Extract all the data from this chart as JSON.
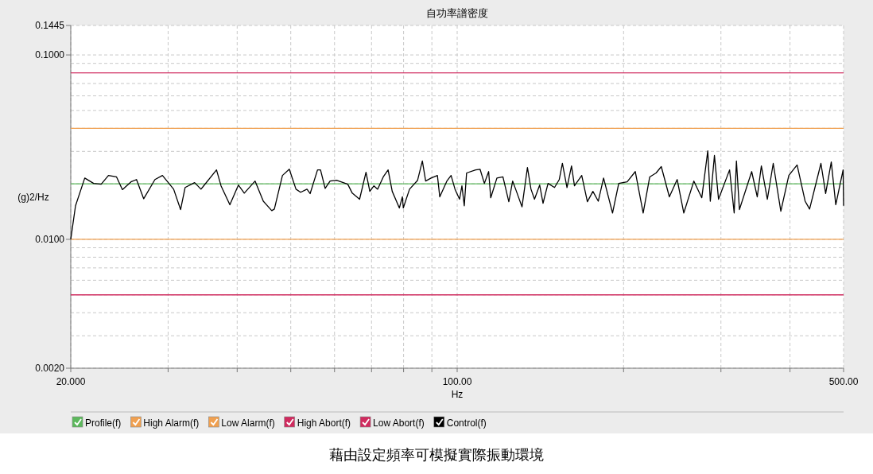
{
  "chart_data": {
    "type": "line",
    "title": "自功率譜密度",
    "xlabel": "Hz",
    "ylabel": "(g)2/Hz",
    "log": "xy",
    "grid": true,
    "legend": "bottom",
    "xlim": [
      20,
      500
    ],
    "ylim": [
      0.002,
      0.1445
    ],
    "xticks": [
      {
        "value": 20,
        "label": "20.000"
      },
      {
        "value": 30,
        "label": null
      },
      {
        "value": 40,
        "label": null
      },
      {
        "value": 50,
        "label": null
      },
      {
        "value": 60,
        "label": null
      },
      {
        "value": 70,
        "label": null
      },
      {
        "value": 80,
        "label": null
      },
      {
        "value": 90,
        "label": null
      },
      {
        "value": 100,
        "label": "100.00"
      },
      {
        "value": 200,
        "label": null
      },
      {
        "value": 300,
        "label": null
      },
      {
        "value": 400,
        "label": null
      },
      {
        "value": 500,
        "label": "500.00"
      }
    ],
    "yticks": [
      {
        "value": 0.002,
        "label": "0.0020"
      },
      {
        "value": 0.003,
        "label": null
      },
      {
        "value": 0.004,
        "label": null
      },
      {
        "value": 0.005,
        "label": null
      },
      {
        "value": 0.006,
        "label": null
      },
      {
        "value": 0.007,
        "label": null
      },
      {
        "value": 0.008,
        "label": null
      },
      {
        "value": 0.009,
        "label": null
      },
      {
        "value": 0.01,
        "label": "0.0100"
      },
      {
        "value": 0.02,
        "label": null
      },
      {
        "value": 0.03,
        "label": null
      },
      {
        "value": 0.04,
        "label": null
      },
      {
        "value": 0.05,
        "label": null
      },
      {
        "value": 0.06,
        "label": null
      },
      {
        "value": 0.07,
        "label": null
      },
      {
        "value": 0.08,
        "label": null
      },
      {
        "value": 0.09,
        "label": null
      },
      {
        "value": 0.1,
        "label": "0.1000"
      },
      {
        "value": 0.1445,
        "label": "0.1445"
      }
    ],
    "series": [
      {
        "name": "Profile(f)",
        "color": "#5cb85c",
        "x": [
          20,
          500
        ],
        "values": [
          0.02,
          0.02
        ]
      },
      {
        "name": "High Alarm(f)",
        "color": "#f0a050",
        "x": [
          20,
          500
        ],
        "values": [
          0.04,
          0.04
        ]
      },
      {
        "name": "Low Alarm(f)",
        "color": "#f0a050",
        "x": [
          20,
          500
        ],
        "values": [
          0.01,
          0.01
        ]
      },
      {
        "name": "High Abort(f)",
        "color": "#d02a5e",
        "x": [
          20,
          500
        ],
        "values": [
          0.08,
          0.08
        ]
      },
      {
        "name": "Low Abort(f)",
        "color": "#d02a5e",
        "x": [
          20,
          500
        ],
        "values": [
          0.005,
          0.005
        ]
      },
      {
        "name": "Control(f)",
        "color": "#000000",
        "x": [
          20,
          20.4,
          21.2,
          22,
          22.7,
          23.4,
          24.2,
          24.8,
          25.7,
          26.3,
          27.1,
          28.4,
          29.3,
          30.7,
          31.6,
          32.2,
          33.5,
          34.4,
          36.7,
          37.4,
          38.8,
          40.2,
          41.2,
          43.1,
          44.6,
          46.2,
          46.7,
          48.3,
          49.7,
          51.1,
          52.1,
          53.5,
          54.2,
          55.9,
          56.6,
          57.7,
          58.9,
          60.5,
          63.4,
          64.6,
          66.6,
          68.4,
          69.5,
          70.7,
          71.8,
          73.5,
          75,
          76.3,
          78.6,
          79.6,
          79.9,
          82,
          84.8,
          86.5,
          87.7,
          89.7,
          92.1,
          93,
          95.8,
          97.5,
          99.1,
          101,
          102,
          103,
          104,
          108,
          110,
          112,
          114,
          115,
          118,
          121,
          124,
          126,
          128,
          131,
          134,
          136,
          138,
          141,
          143,
          146,
          150,
          153,
          155,
          158,
          161,
          163,
          168,
          172,
          176,
          180,
          184,
          191,
          196,
          203,
          210,
          217,
          223,
          229,
          234,
          242,
          250,
          257,
          268,
          277,
          284,
          287,
          292,
          297,
          311,
          317,
          320,
          324,
          341,
          349,
          355,
          364,
          373,
          385,
          398,
          412,
          426,
          434,
          455,
          464,
          475,
          484,
          499,
          500
        ],
        "values": [
          0.01,
          0.0152,
          0.0215,
          0.0201,
          0.0199,
          0.0222,
          0.0218,
          0.0186,
          0.0205,
          0.0211,
          0.0166,
          0.0211,
          0.0222,
          0.0187,
          0.0145,
          0.0191,
          0.0203,
          0.0187,
          0.0238,
          0.0195,
          0.0154,
          0.0197,
          0.0178,
          0.0207,
          0.0161,
          0.0143,
          0.0146,
          0.0222,
          0.024,
          0.0187,
          0.018,
          0.0187,
          0.0177,
          0.0238,
          0.0238,
          0.0189,
          0.0207,
          0.0209,
          0.0199,
          0.0178,
          0.0165,
          0.0231,
          0.0182,
          0.0195,
          0.0187,
          0.0218,
          0.0238,
          0.0182,
          0.0148,
          0.017,
          0.0148,
          0.0187,
          0.0209,
          0.0266,
          0.0207,
          0.0215,
          0.0222,
          0.017,
          0.0207,
          0.0222,
          0.0187,
          0.0165,
          0.0195,
          0.0152,
          0.0229,
          0.0238,
          0.024,
          0.0201,
          0.0233,
          0.0168,
          0.0215,
          0.0218,
          0.016,
          0.0207,
          0.0182,
          0.015,
          0.0245,
          0.0187,
          0.0165,
          0.0197,
          0.0157,
          0.0201,
          0.0191,
          0.0211,
          0.0258,
          0.0191,
          0.025,
          0.0195,
          0.0222,
          0.016,
          0.0182,
          0.0161,
          0.0215,
          0.0139,
          0.0201,
          0.0205,
          0.0233,
          0.0139,
          0.0218,
          0.0229,
          0.0248,
          0.017,
          0.0211,
          0.0139,
          0.0207,
          0.0168,
          0.0302,
          0.0161,
          0.0285,
          0.0165,
          0.0238,
          0.0139,
          0.0266,
          0.0145,
          0.0233,
          0.017,
          0.025,
          0.0165,
          0.0258,
          0.0142,
          0.0222,
          0.0253,
          0.0161,
          0.0146,
          0.0258,
          0.0177,
          0.0263,
          0.0154,
          0.0238,
          0.0152
        ]
      }
    ],
    "annotations": [
      "藉由設定頻率可模擬實際振動環境"
    ]
  }
}
